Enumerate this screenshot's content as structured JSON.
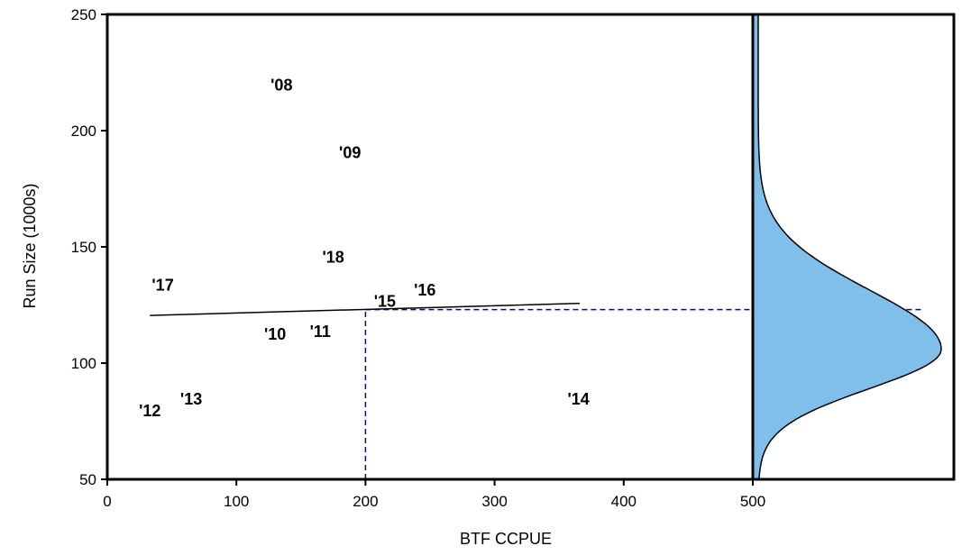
{
  "chart_data": {
    "type": "scatter",
    "title": "",
    "xlabel": "BTF CCPUE",
    "ylabel": "Run Size (1000s)",
    "xlim": [
      0,
      500
    ],
    "ylim": [
      50,
      250
    ],
    "xticks": [
      0,
      100,
      200,
      300,
      400,
      500
    ],
    "yticks": [
      50,
      100,
      150,
      200,
      250
    ],
    "grid": false,
    "points": [
      {
        "label": "'08",
        "x": 135,
        "y": 219
      },
      {
        "label": "'09",
        "x": 188,
        "y": 190
      },
      {
        "label": "'10",
        "x": 130,
        "y": 112
      },
      {
        "label": "'11",
        "x": 165,
        "y": 113
      },
      {
        "label": "'12",
        "x": 33,
        "y": 79
      },
      {
        "label": "'13",
        "x": 65,
        "y": 84
      },
      {
        "label": "'14",
        "x": 365,
        "y": 84
      },
      {
        "label": "'15",
        "x": 215,
        "y": 126
      },
      {
        "label": "'16",
        "x": 246,
        "y": 131
      },
      {
        "label": "'17",
        "x": 43,
        "y": 133
      },
      {
        "label": "'18",
        "x": 175,
        "y": 145
      }
    ],
    "regression_line": {
      "x": [
        33,
        366
      ],
      "y": [
        120.5,
        125.7
      ]
    },
    "prediction": {
      "x": 200,
      "y": 123
    },
    "distribution": {
      "fill_color": "#7fbfea",
      "mean": 106,
      "sd": 17,
      "skew": 1.5
    }
  },
  "colors": {
    "points": "#000000",
    "regression": "#000000",
    "prediction_lines": "#0000cc",
    "frame": "#000000"
  }
}
